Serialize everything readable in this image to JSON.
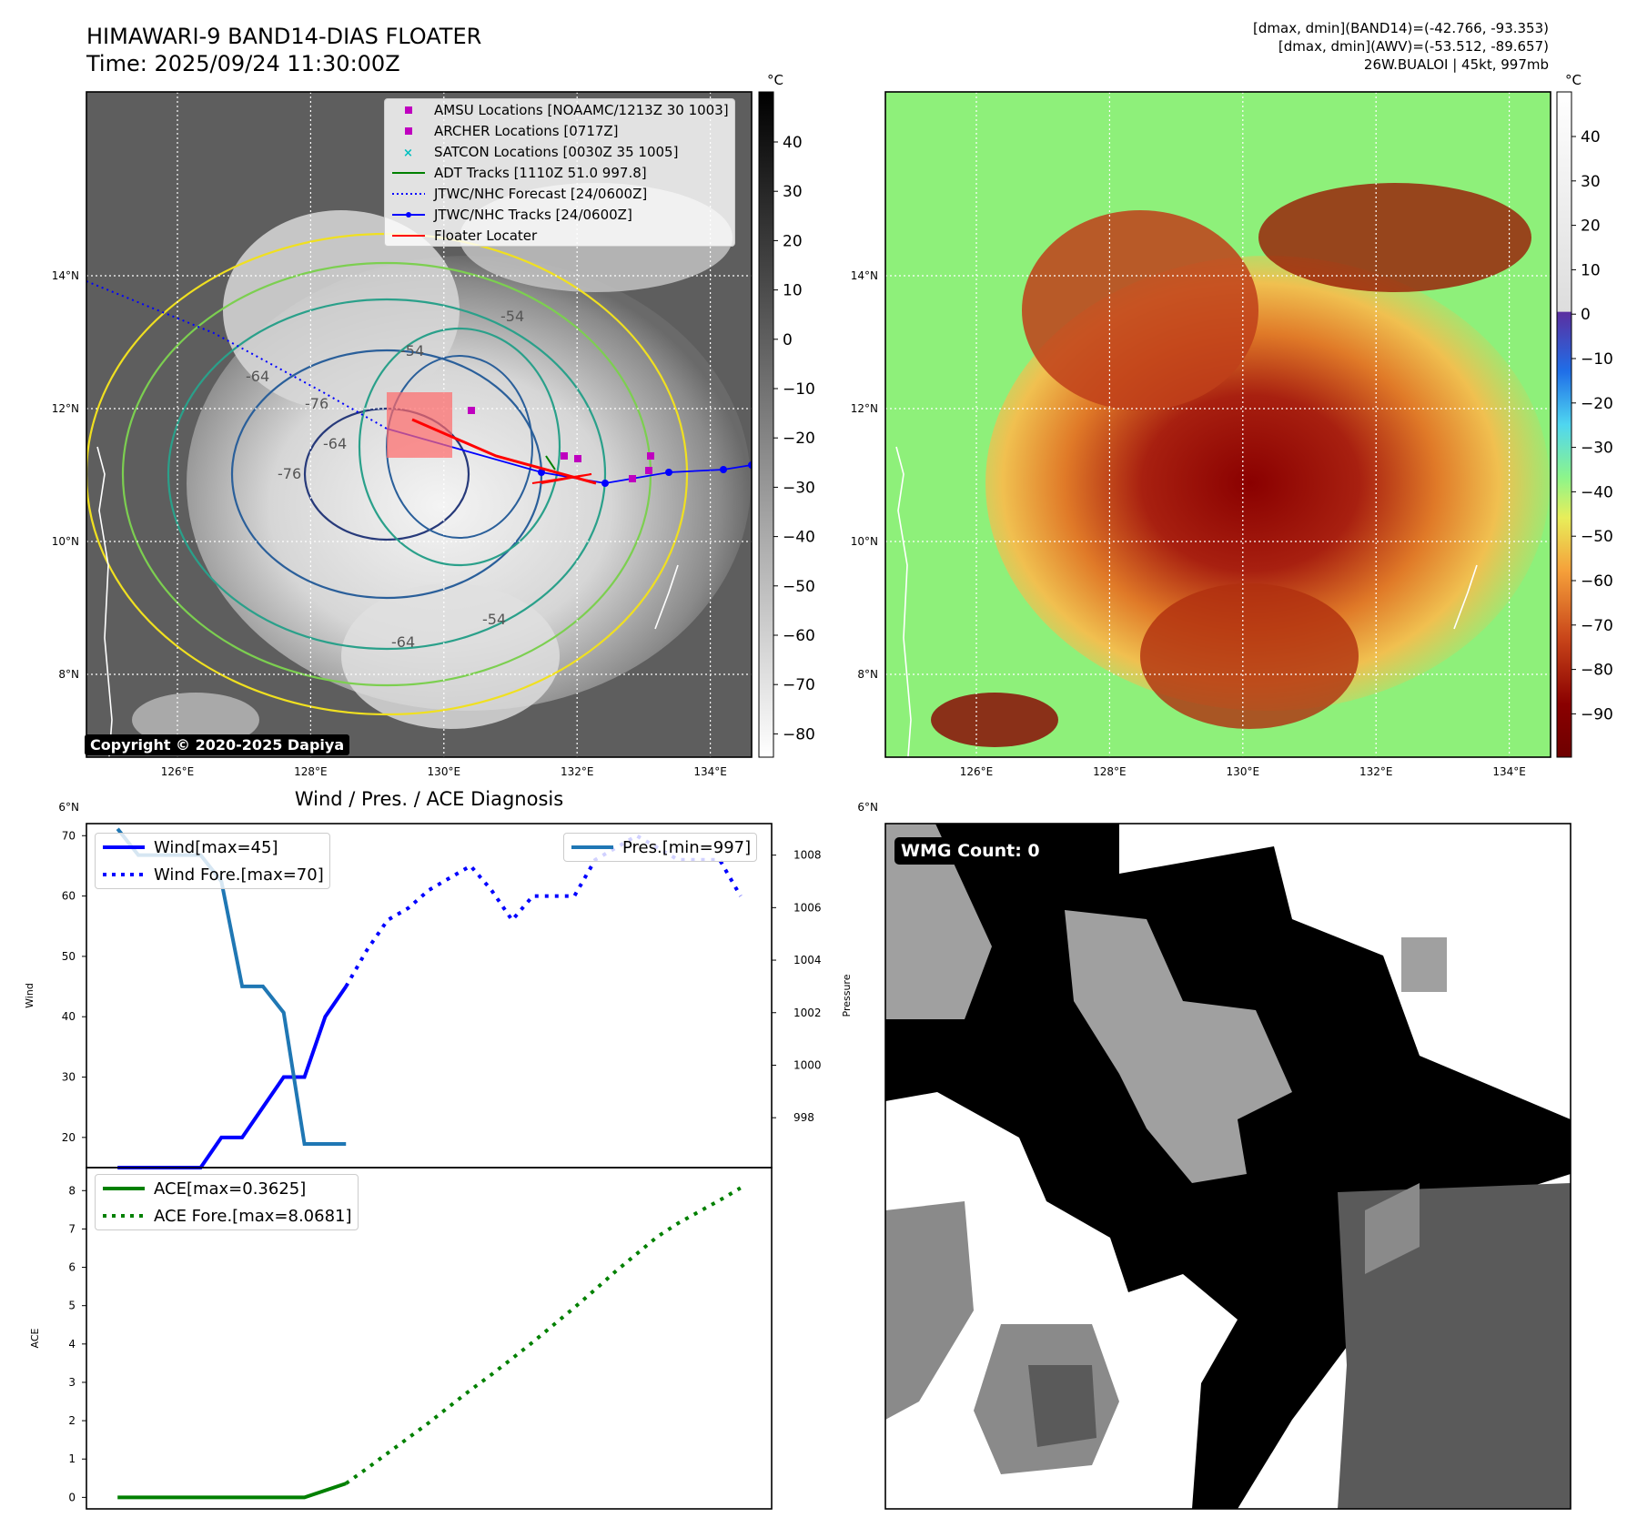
{
  "header": {
    "title_line1": "HIMAWARI-9 BAND14-DIAS FLOATER",
    "title_line2": "Time: 2025/09/24 11:30:00Z",
    "info_line1": "[dmax, dmin](BAND14)=(-42.766, -93.353)",
    "info_line2": "[dmax, dmin](AWV)=(-53.512, -89.657)",
    "info_line3": "26W.BUALOI | 45kt, 997mb"
  },
  "copyright": "Copyright © 2020-2025 Dapiya",
  "map_axes": {
    "lon_ticks": [
      "126°E",
      "128°E",
      "130°E",
      "132°E",
      "134°E"
    ],
    "lat_ticks": [
      "14°N",
      "12°N",
      "10°N",
      "8°N",
      "6°N"
    ]
  },
  "colorbar_left": {
    "unit": "°C",
    "ticks": [
      "40",
      "30",
      "20",
      "10",
      "0",
      "−10",
      "−20",
      "−30",
      "−40",
      "−50",
      "−60",
      "−70",
      "−80"
    ]
  },
  "colorbar_right": {
    "unit": "°C",
    "ticks": [
      "40",
      "30",
      "20",
      "10",
      "0",
      "−10",
      "−20",
      "−30",
      "−40",
      "−50",
      "−60",
      "−70",
      "−80",
      "−90"
    ]
  },
  "map_legend": [
    {
      "label": "AMSU Locations [NOAAMC/1213Z 30 1003]",
      "marker": "square",
      "color": "#bf00bf"
    },
    {
      "label": "ARCHER Locations [0717Z]",
      "marker": "square",
      "color": "#bf00bf"
    },
    {
      "label": "SATCON Locations [0030Z 35 1005]",
      "marker": "x",
      "color": "#00bfbf"
    },
    {
      "label": "ADT Tracks [1110Z 51.0 997.8]",
      "marker": "line",
      "color": "#008000"
    },
    {
      "label": "JTWC/NHC Forecast [24/0600Z]",
      "marker": "dotted",
      "color": "#0000ff"
    },
    {
      "label": "JTWC/NHC Tracks [24/0600Z]",
      "marker": "line-dot",
      "color": "#0000ff"
    },
    {
      "label": "Floater Locater",
      "marker": "line",
      "color": "#ff0000"
    }
  ],
  "contour_labels": [
    "-64",
    "-76",
    "-76",
    "-64",
    "-54",
    "-54",
    "-64",
    "-54"
  ],
  "wmg_label": "WMG Count: 0",
  "chart_data": [
    {
      "type": "line",
      "title": "Wind / Pres. / ACE Diagnosis",
      "ylabel": "Wind",
      "ylabel2": "Pressure",
      "x": [
        0,
        1,
        2,
        3,
        4,
        5,
        6,
        7,
        8,
        9,
        10,
        11,
        12,
        13,
        14,
        15,
        16,
        17,
        18,
        19,
        20,
        21,
        22,
        23,
        24,
        25,
        26,
        27,
        28,
        29,
        30
      ],
      "ylim": [
        15,
        72
      ],
      "y2lim": [
        996.1,
        1009.2
      ],
      "yticks": [
        "70",
        "60",
        "50",
        "40",
        "30",
        "20"
      ],
      "y2ticks": [
        "1008",
        "1006",
        "1004",
        "1002",
        "1000",
        "998"
      ],
      "series": [
        {
          "name": "Wind[max=45]",
          "style": "solid",
          "color": "#0000ff",
          "axis": "left",
          "x": [
            0,
            4,
            5,
            6,
            7,
            8,
            9,
            10,
            11
          ],
          "values": [
            15,
            15,
            20,
            20,
            25,
            30,
            30,
            40,
            45
          ]
        },
        {
          "name": "Wind Fore.[max=70]",
          "style": "dotted",
          "color": "#0000ff",
          "axis": "left",
          "x": [
            11,
            12,
            13,
            14,
            15,
            16,
            17,
            18,
            19,
            20,
            21,
            22,
            23,
            24,
            25,
            26,
            27,
            28,
            29,
            30
          ],
          "values": [
            45,
            51,
            56,
            58,
            61,
            63,
            65,
            61,
            56,
            60,
            60,
            60,
            66,
            68,
            70,
            68,
            66,
            66,
            66,
            60
          ]
        },
        {
          "name": "Pres.[min=997]",
          "style": "solid",
          "color": "#1f77b4",
          "axis": "right",
          "x": [
            0,
            1,
            2,
            3,
            4,
            5,
            6,
            7,
            8,
            9,
            10,
            11
          ],
          "values": [
            1009.0,
            1008.0,
            1008.0,
            1008.0,
            1008.0,
            1007.0,
            1003.0,
            1003.0,
            1002.0,
            997.0,
            997.0,
            997.0
          ]
        }
      ]
    },
    {
      "type": "line",
      "ylabel": "ACE",
      "ylim": [
        -0.3,
        8.6
      ],
      "yticks": [
        "8",
        "7",
        "6",
        "5",
        "4",
        "3",
        "2",
        "1",
        "0"
      ],
      "series": [
        {
          "name": "ACE[max=0.3625]",
          "style": "solid",
          "color": "#008000",
          "x": [
            0,
            1,
            2,
            3,
            4,
            5,
            6,
            7,
            8,
            9,
            10,
            11
          ],
          "values": [
            0,
            0,
            0,
            0,
            0,
            0,
            0,
            0,
            0,
            0,
            0.18,
            0.3625
          ]
        },
        {
          "name": "ACE Fore.[max=8.0681]",
          "style": "dotted",
          "color": "#008000",
          "x": [
            11,
            12,
            13,
            14,
            15,
            16,
            17,
            18,
            19,
            20,
            21,
            22,
            23,
            24,
            25,
            26,
            27,
            28,
            29,
            30
          ],
          "values": [
            0.3625,
            0.75,
            1.15,
            1.55,
            1.95,
            2.38,
            2.8,
            3.2,
            3.62,
            4.05,
            4.5,
            4.95,
            5.42,
            5.9,
            6.35,
            6.8,
            7.15,
            7.45,
            7.75,
            8.0681
          ]
        }
      ]
    }
  ]
}
